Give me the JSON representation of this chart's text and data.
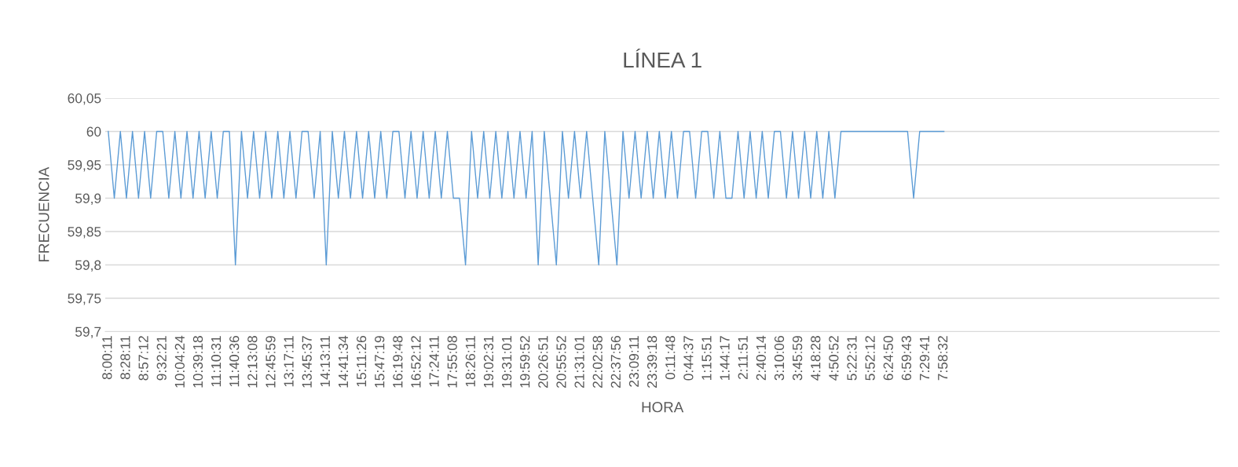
{
  "chart_data": {
    "type": "line",
    "title": "LÍNEA 1",
    "xlabel": "HORA",
    "ylabel": "FRECUENCIA",
    "categories": [
      "8:00:11",
      null,
      null,
      "8:28:11",
      null,
      null,
      "8:57:12",
      null,
      null,
      "9:32:21",
      null,
      null,
      "10:04:24",
      null,
      null,
      "10:39:18",
      null,
      null,
      "11:10:31",
      null,
      null,
      "11:40:36",
      null,
      null,
      "12:13:08",
      null,
      null,
      "12:45:59",
      null,
      null,
      "13:17:11",
      null,
      null,
      "13:45:37",
      null,
      null,
      "14:13:11",
      null,
      null,
      "14:41:34",
      null,
      null,
      "15:11:26",
      null,
      null,
      "15:47:19",
      null,
      null,
      "16:19:48",
      null,
      null,
      "16:52:12",
      null,
      null,
      "17:24:11",
      null,
      null,
      "17:55:08",
      null,
      null,
      "18:26:11",
      null,
      null,
      "19:02:31",
      null,
      null,
      "19:31:01",
      null,
      null,
      "19:59:52",
      null,
      null,
      "20:26:51",
      null,
      null,
      "20:55:52",
      null,
      null,
      "21:31:01",
      null,
      null,
      "22:02:58",
      null,
      null,
      "22:37:56",
      null,
      null,
      "23:09:11",
      null,
      null,
      "23:39:18",
      null,
      null,
      "0:11:48",
      null,
      null,
      "0:44:37",
      null,
      null,
      "1:15:51",
      null,
      null,
      "1:44:17",
      null,
      null,
      "2:11:51",
      null,
      null,
      "2:40:14",
      null,
      null,
      "3:10:06",
      null,
      null,
      "3:45:59",
      null,
      null,
      "4:18:28",
      null,
      null,
      "4:50:52",
      null,
      null,
      "5:22:31",
      null,
      null,
      "5:52:12",
      null,
      null,
      "6:24:50",
      null,
      null,
      "6:59:43",
      null,
      null,
      "7:29:41",
      null,
      null,
      "7:58:32",
      null,
      null,
      null,
      null,
      null,
      null,
      null,
      null,
      null,
      null,
      null,
      null,
      null,
      null,
      null,
      null,
      null,
      null,
      null,
      null,
      null,
      null,
      null,
      null,
      null,
      null,
      null,
      null,
      null,
      null,
      null,
      null,
      null,
      null,
      null,
      null,
      null,
      null,
      null,
      null,
      null,
      null,
      null,
      null,
      null
    ],
    "series": [
      {
        "color": "#5b9bd5",
        "values": [
          60,
          59.9,
          60,
          59.9,
          60,
          59.9,
          60,
          59.9,
          60,
          60,
          59.9,
          60,
          59.9,
          60,
          59.9,
          60,
          59.9,
          60,
          59.9,
          60,
          60,
          59.8,
          60,
          59.9,
          60,
          59.9,
          60,
          59.9,
          60,
          59.9,
          60,
          59.9,
          60,
          60,
          59.9,
          60,
          59.8,
          60,
          59.9,
          60,
          59.9,
          60,
          59.9,
          60,
          59.9,
          60,
          59.9,
          60,
          60,
          59.9,
          60,
          59.9,
          60,
          59.9,
          60,
          59.9,
          60,
          59.9,
          59.9,
          59.8,
          60,
          59.9,
          60,
          59.9,
          60,
          59.9,
          60,
          59.9,
          60,
          59.9,
          60,
          59.8,
          60,
          59.9,
          59.8,
          60,
          59.9,
          60,
          59.9,
          60,
          59.9,
          59.8,
          60,
          59.9,
          59.8,
          60,
          59.9,
          60,
          59.9,
          60,
          59.9,
          60,
          59.9,
          60,
          59.9,
          60,
          60,
          59.9,
          60,
          60,
          59.9,
          60,
          59.9,
          59.9,
          60,
          59.9,
          60,
          59.9,
          60,
          59.9,
          60,
          60,
          59.9,
          60,
          59.9,
          60,
          59.9,
          60,
          59.9,
          60,
          59.9,
          60,
          60,
          60,
          60,
          60,
          60,
          60,
          60,
          60,
          60,
          60,
          60,
          59.9,
          60,
          60,
          60,
          60,
          60,
          null,
          null,
          null,
          null,
          null,
          null,
          null,
          null,
          null,
          null,
          null,
          null,
          null,
          null,
          null,
          null,
          null,
          null,
          null,
          null,
          null,
          null,
          null,
          null,
          null,
          null,
          null,
          null,
          null,
          null,
          null,
          null,
          null,
          null,
          null,
          null,
          null,
          null,
          null,
          null,
          null,
          null,
          null,
          null,
          null
        ]
      }
    ],
    "ylim": [
      59.7,
      60.05
    ],
    "yticks": [
      {
        "value": 59.7,
        "label": "59,7"
      },
      {
        "value": 59.75,
        "label": "59,75"
      },
      {
        "value": 59.8,
        "label": "59,8"
      },
      {
        "value": 59.85,
        "label": "59,85"
      },
      {
        "value": 59.9,
        "label": "59,9"
      },
      {
        "value": 59.95,
        "label": "59,95"
      },
      {
        "value": 60,
        "label": "60"
      },
      {
        "value": 60.05,
        "label": "60,05"
      }
    ],
    "grid": "y",
    "marker": "none",
    "line_style": "solid"
  }
}
